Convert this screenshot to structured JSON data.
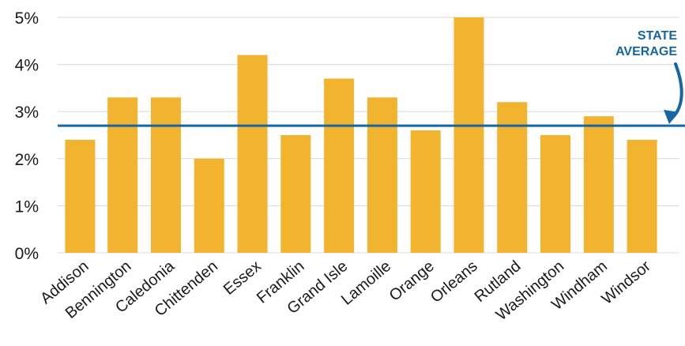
{
  "chart_data": {
    "type": "bar",
    "categories": [
      "Addison",
      "Bennington",
      "Caledonia",
      "Chittenden",
      "Essex",
      "Franklin",
      "Grand Isle",
      "Lamoille",
      "Orange",
      "Orleans",
      "Rutland",
      "Washington",
      "Windham",
      "Windsor"
    ],
    "values": [
      2.4,
      3.3,
      3.3,
      2.0,
      4.2,
      2.5,
      3.7,
      3.3,
      2.6,
      5.0,
      3.2,
      2.5,
      2.9,
      2.4
    ],
    "ylim": [
      0,
      5
    ],
    "y_ticks": [
      "0%",
      "1%",
      "2%",
      "3%",
      "4%",
      "5%"
    ],
    "y_tick_values": [
      0,
      1,
      2,
      3,
      4,
      5
    ],
    "reference_line": {
      "value": 2.7,
      "label_line1": "STATE",
      "label_line2": "AVERAGE"
    },
    "grid": true,
    "colors": {
      "bar": "#f2b32e",
      "reference": "#1466a6",
      "grid": "#d9d9d9"
    }
  }
}
